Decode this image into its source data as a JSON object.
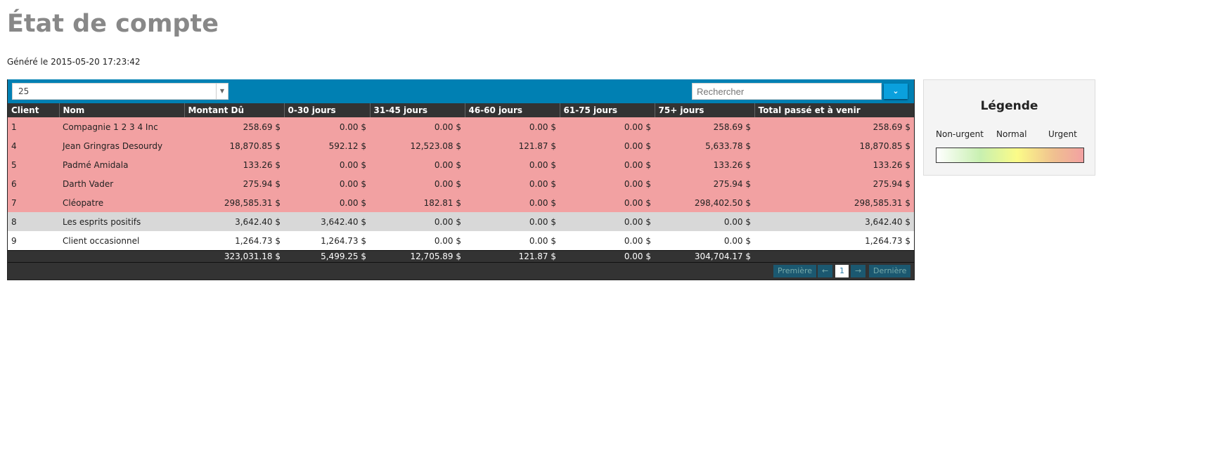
{
  "title": "État de compte",
  "generated": "Généré le 2015-05-20 17:23:42",
  "toolbar": {
    "page_size": "25",
    "search_placeholder": "Rechercher",
    "dropdown_icon": "chevron-down-icon"
  },
  "columns": [
    "Client",
    "Nom",
    "Montant Dû",
    "0-30 jours",
    "31-45 jours",
    "46-60 jours",
    "61-75 jours",
    "75+ jours",
    "Total passé et à venir"
  ],
  "rows": [
    {
      "status": "urgent",
      "cells": [
        "1",
        "Compagnie 1 2 3 4 Inc",
        "258.69 $",
        "0.00 $",
        "0.00 $",
        "0.00 $",
        "0.00 $",
        "258.69 $",
        "258.69 $"
      ]
    },
    {
      "status": "urgent",
      "cells": [
        "4",
        "Jean Gringras Desourdy",
        "18,870.85 $",
        "592.12 $",
        "12,523.08 $",
        "121.87 $",
        "0.00 $",
        "5,633.78 $",
        "18,870.85 $"
      ]
    },
    {
      "status": "urgent",
      "cells": [
        "5",
        "Padmé Amidala",
        "133.26 $",
        "0.00 $",
        "0.00 $",
        "0.00 $",
        "0.00 $",
        "133.26 $",
        "133.26 $"
      ]
    },
    {
      "status": "urgent",
      "cells": [
        "6",
        "Darth Vader",
        "275.94 $",
        "0.00 $",
        "0.00 $",
        "0.00 $",
        "0.00 $",
        "275.94 $",
        "275.94 $"
      ]
    },
    {
      "status": "urgent",
      "cells": [
        "7",
        "Cléopatre",
        "298,585.31 $",
        "0.00 $",
        "182.81 $",
        "0.00 $",
        "0.00 $",
        "298,402.50 $",
        "298,585.31 $"
      ]
    },
    {
      "status": "grey",
      "cells": [
        "8",
        "Les esprits positifs",
        "3,642.40 $",
        "3,642.40 $",
        "0.00 $",
        "0.00 $",
        "0.00 $",
        "0.00 $",
        "3,642.40 $"
      ]
    },
    {
      "status": "none",
      "cells": [
        "9",
        "Client occasionnel",
        "1,264.73 $",
        "1,264.73 $",
        "0.00 $",
        "0.00 $",
        "0.00 $",
        "0.00 $",
        "1,264.73 $"
      ]
    }
  ],
  "totals": [
    "",
    "",
    "323,031.18 $",
    "5,499.25 $",
    "12,705.89 $",
    "121.87 $",
    "0.00 $",
    "304,704.17 $",
    ""
  ],
  "pager": {
    "first": "Première",
    "prev": "←",
    "page": "1",
    "next": "→",
    "last": "Dernière"
  },
  "legend": {
    "title": "Légende",
    "labels": [
      "Non-urgent",
      "Normal",
      "Urgent"
    ]
  },
  "colors": {
    "urgent": "#f2a1a2",
    "grey": "#d8d8d8",
    "toolbar": "#0080b3",
    "header": "#333333"
  }
}
